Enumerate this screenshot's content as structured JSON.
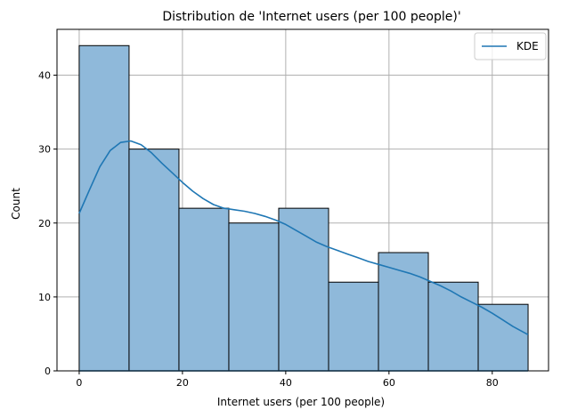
{
  "chart_data": {
    "type": "bar",
    "title": "Distribution de 'Internet users (per 100 people)'",
    "xlabel": "Internet users (per 100 people)",
    "ylabel": "Count",
    "xlim": [
      -4.3,
      90.9
    ],
    "ylim": [
      0,
      46.2
    ],
    "xticks": [
      0,
      20,
      40,
      60,
      80
    ],
    "yticks": [
      0,
      10,
      20,
      30,
      40
    ],
    "grid": true,
    "bins": [
      {
        "x0": 0.0,
        "x1": 9.66,
        "count": 44
      },
      {
        "x0": 9.66,
        "x1": 19.32,
        "count": 30
      },
      {
        "x0": 19.32,
        "x1": 28.98,
        "count": 22
      },
      {
        "x0": 28.98,
        "x1": 38.64,
        "count": 20
      },
      {
        "x0": 38.64,
        "x1": 48.3,
        "count": 22
      },
      {
        "x0": 48.3,
        "x1": 57.96,
        "count": 12
      },
      {
        "x0": 57.96,
        "x1": 67.62,
        "count": 16
      },
      {
        "x0": 67.62,
        "x1": 77.28,
        "count": 12
      },
      {
        "x0": 77.28,
        "x1": 86.94,
        "count": 9
      }
    ],
    "kde": {
      "x": [
        0,
        2,
        4,
        6,
        8,
        10,
        12,
        14,
        16,
        18,
        20,
        22,
        24,
        26,
        28,
        30,
        32,
        34,
        36,
        38,
        40,
        42,
        44,
        46,
        48,
        50,
        52,
        54,
        56,
        58,
        60,
        62,
        64,
        66,
        68,
        70,
        72,
        74,
        76,
        78,
        80,
        82,
        84,
        86.94
      ],
      "y": [
        21.3,
        24.5,
        27.6,
        29.8,
        30.9,
        31.1,
        30.6,
        29.5,
        28.1,
        26.8,
        25.5,
        24.3,
        23.3,
        22.5,
        22.0,
        21.8,
        21.6,
        21.3,
        20.9,
        20.4,
        19.8,
        19.0,
        18.2,
        17.4,
        16.8,
        16.3,
        15.8,
        15.3,
        14.8,
        14.4,
        14.0,
        13.6,
        13.2,
        12.7,
        12.1,
        11.5,
        10.8,
        10.0,
        9.3,
        8.6,
        7.8,
        6.9,
        6.0,
        4.9
      ]
    },
    "legend": {
      "label": "KDE",
      "position": "top-right"
    },
    "colors": {
      "bar_fill": "#8fb9da",
      "bar_edge": "#000000",
      "kde_line": "#1f77b4",
      "grid": "#b0b0b0"
    }
  }
}
